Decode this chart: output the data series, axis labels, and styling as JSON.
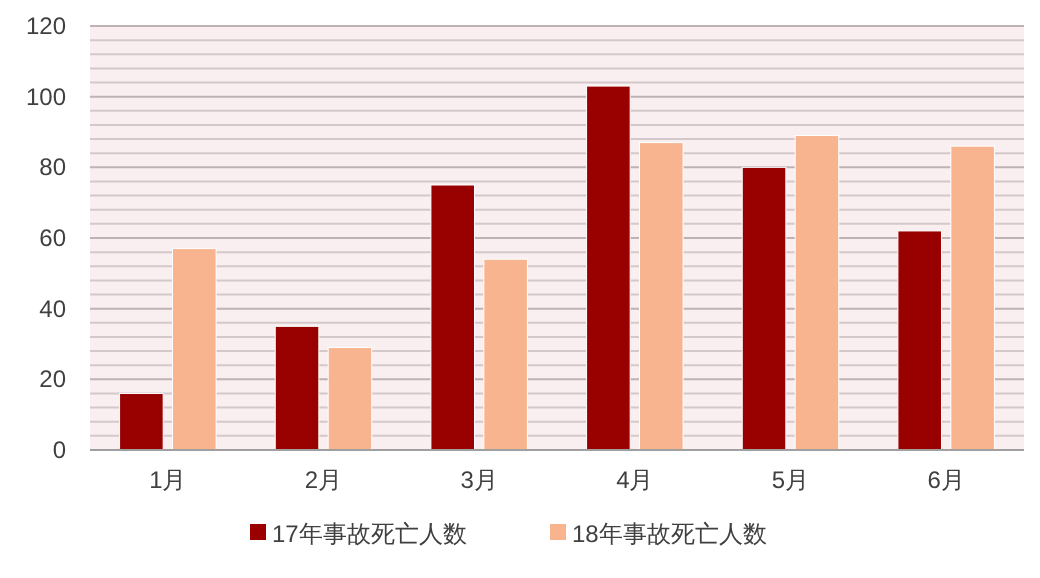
{
  "chart_data": {
    "type": "bar",
    "categories": [
      "1月",
      "2月",
      "3月",
      "4月",
      "5月",
      "6月"
    ],
    "series": [
      {
        "name": "17年事故死亡人数",
        "color": "#990000",
        "values": [
          16,
          35,
          75,
          103,
          80,
          62
        ]
      },
      {
        "name": "18年事故死亡人数",
        "color": "#f8b48f",
        "values": [
          57,
          29,
          54,
          87,
          89,
          86
        ]
      }
    ],
    "ylim": [
      0,
      120
    ],
    "yticks": [
      0,
      20,
      40,
      60,
      80,
      100,
      120
    ],
    "grid": "y",
    "legend": "bottom"
  }
}
